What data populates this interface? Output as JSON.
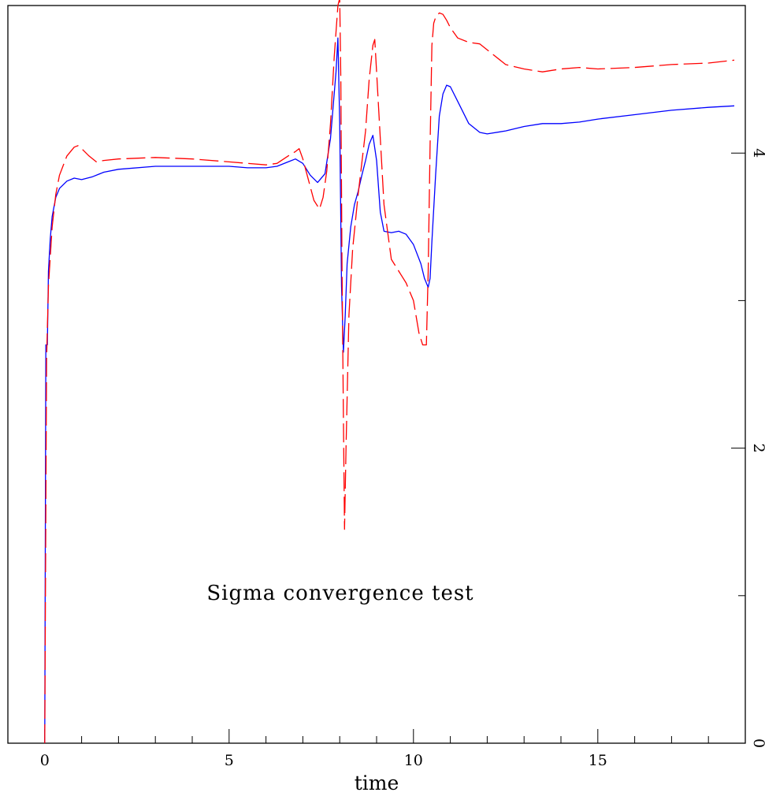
{
  "chart_data": {
    "type": "line",
    "title": "",
    "xlabel": "time",
    "ylabel": "",
    "annotation": "Sigma convergence test",
    "xlim": [
      -1,
      19
    ],
    "ylim": [
      0,
      5
    ],
    "x_ticks_major": [
      0,
      5,
      10,
      15
    ],
    "x_tick_labels": [
      "0",
      "5",
      "10",
      "15"
    ],
    "y_ticks_major": [
      0,
      2,
      4
    ],
    "y_tick_labels": [
      "0",
      "2",
      "4"
    ],
    "y_axis_side": "right",
    "grid": false,
    "legend": "none",
    "series": [
      {
        "color": "#0000ff",
        "style": "solid",
        "x": [
          0.0,
          0.03,
          0.07,
          0.1,
          0.15,
          0.2,
          0.3,
          0.4,
          0.6,
          0.8,
          1.0,
          1.3,
          1.6,
          2.0,
          3.0,
          4.0,
          5.0,
          5.5,
          6.0,
          6.3,
          6.6,
          6.8,
          7.0,
          7.2,
          7.4,
          7.6,
          7.75,
          7.9,
          7.95,
          8.0,
          8.05,
          8.1,
          8.15,
          8.2,
          8.3,
          8.4,
          8.5,
          8.6,
          8.7,
          8.8,
          8.9,
          9.0,
          9.1,
          9.2,
          9.4,
          9.6,
          9.8,
          10.0,
          10.2,
          10.3,
          10.4,
          10.45,
          10.5,
          10.6,
          10.7,
          10.8,
          10.9,
          11.0,
          11.2,
          11.5,
          11.8,
          12.0,
          12.5,
          13.0,
          13.5,
          14.0,
          14.5,
          15.0,
          16.0,
          17.0,
          18.0,
          18.7
        ],
        "y": [
          0.0,
          2.7,
          2.7,
          3.2,
          3.42,
          3.57,
          3.7,
          3.76,
          3.81,
          3.83,
          3.82,
          3.84,
          3.87,
          3.89,
          3.91,
          3.91,
          3.91,
          3.9,
          3.9,
          3.91,
          3.94,
          3.96,
          3.93,
          3.85,
          3.8,
          3.86,
          4.1,
          4.55,
          4.78,
          4.2,
          3.1,
          2.65,
          2.9,
          3.25,
          3.5,
          3.65,
          3.74,
          3.85,
          3.95,
          4.06,
          4.12,
          3.95,
          3.6,
          3.47,
          3.46,
          3.47,
          3.45,
          3.38,
          3.25,
          3.15,
          3.09,
          3.15,
          3.4,
          3.85,
          4.25,
          4.4,
          4.46,
          4.45,
          4.35,
          4.2,
          4.14,
          4.13,
          4.15,
          4.18,
          4.2,
          4.2,
          4.21,
          4.23,
          4.26,
          4.29,
          4.31,
          4.32
        ]
      },
      {
        "color": "#ff0000",
        "style": "dashed",
        "x": [
          0.0,
          0.05,
          0.1,
          0.2,
          0.3,
          0.4,
          0.6,
          0.8,
          0.9,
          1.0,
          1.2,
          1.4,
          1.6,
          2.0,
          3.0,
          4.0,
          5.0,
          6.0,
          6.3,
          6.6,
          6.8,
          6.9,
          7.0,
          7.15,
          7.3,
          7.45,
          7.55,
          7.65,
          7.75,
          7.85,
          7.95,
          8.0,
          8.03,
          8.06,
          8.1,
          8.13,
          8.17,
          8.25,
          8.35,
          8.5,
          8.7,
          8.8,
          8.9,
          8.95,
          9.0,
          9.1,
          9.2,
          9.4,
          9.6,
          9.8,
          10.0,
          10.15,
          10.25,
          10.35,
          10.4,
          10.45,
          10.5,
          10.55,
          10.6,
          10.7,
          10.8,
          10.9,
          11.0,
          11.2,
          11.5,
          11.8,
          12.0,
          12.5,
          13.0,
          13.5,
          14.0,
          14.5,
          15.0,
          16.0,
          17.0,
          18.0,
          18.7
        ],
        "y": [
          0.0,
          2.6,
          3.1,
          3.5,
          3.72,
          3.85,
          3.98,
          4.04,
          4.05,
          4.03,
          3.98,
          3.94,
          3.95,
          3.96,
          3.97,
          3.96,
          3.94,
          3.92,
          3.93,
          3.98,
          4.01,
          4.03,
          3.96,
          3.82,
          3.68,
          3.62,
          3.7,
          3.88,
          4.2,
          4.65,
          5.0,
          5.05,
          4.5,
          3.3,
          2.2,
          1.45,
          2.0,
          2.9,
          3.35,
          3.72,
          4.15,
          4.5,
          4.73,
          4.77,
          4.55,
          4.1,
          3.65,
          3.28,
          3.2,
          3.12,
          3.0,
          2.78,
          2.7,
          2.7,
          3.2,
          4.05,
          4.73,
          4.88,
          4.92,
          4.95,
          4.94,
          4.9,
          4.85,
          4.78,
          4.75,
          4.74,
          4.7,
          4.6,
          4.57,
          4.55,
          4.57,
          4.58,
          4.57,
          4.58,
          4.6,
          4.61,
          4.63
        ]
      }
    ]
  }
}
